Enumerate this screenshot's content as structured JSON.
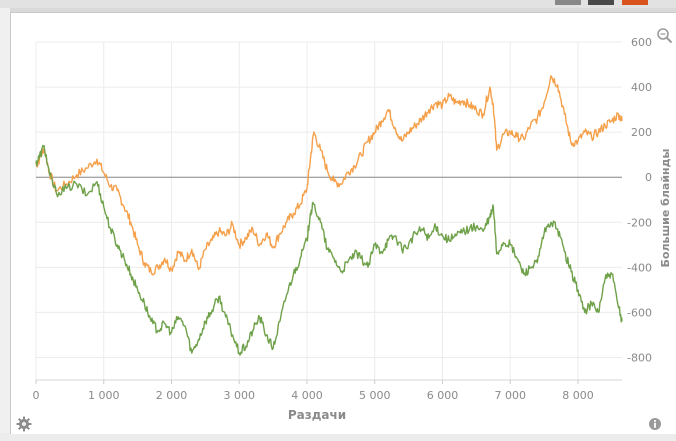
{
  "toolbar_colors": [
    "#888888",
    "#4a4a4a",
    "#4a4a4a",
    "#d9531e"
  ],
  "icons": {
    "zoom": "magnifier-icon",
    "settings": "gear-icon",
    "info": "info-icon"
  },
  "chart_data": {
    "type": "line",
    "xlabel": "Раздачи",
    "ylabel": "Большие блайнды",
    "xlim": [
      0,
      8650
    ],
    "ylim": [
      -900,
      600
    ],
    "x_ticks": [
      0,
      1000,
      2000,
      3000,
      4000,
      5000,
      6000,
      7000,
      8000
    ],
    "x_tick_labels": [
      "0",
      "1 000",
      "2 000",
      "3 000",
      "4 000",
      "5 000",
      "6 000",
      "7 000",
      "8 000"
    ],
    "y_ticks": [
      600,
      400,
      200,
      0,
      -200,
      -400,
      -600,
      -800
    ],
    "y_tick_labels": [
      "600",
      "400",
      "200",
      "0",
      "-200",
      "-400",
      "-600",
      "-800"
    ],
    "grid": true,
    "zero_line": true,
    "series": [
      {
        "color": "#f5a04a",
        "x": [
          0,
          50,
          120,
          200,
          300,
          450,
          600,
          750,
          900,
          1000,
          1100,
          1200,
          1300,
          1400,
          1500,
          1600,
          1700,
          1800,
          1900,
          2000,
          2100,
          2200,
          2300,
          2400,
          2500,
          2600,
          2700,
          2800,
          2900,
          3000,
          3100,
          3200,
          3300,
          3400,
          3500,
          3600,
          3700,
          3800,
          3900,
          4000,
          4050,
          4100,
          4200,
          4300,
          4400,
          4500,
          4600,
          4700,
          4800,
          4900,
          5000,
          5100,
          5200,
          5300,
          5400,
          5500,
          5600,
          5700,
          5800,
          5900,
          6000,
          6100,
          6200,
          6300,
          6400,
          6500,
          6600,
          6700,
          6750,
          6800,
          6900,
          7000,
          7100,
          7200,
          7300,
          7400,
          7500,
          7600,
          7700,
          7800,
          7900,
          8000,
          8100,
          8200,
          8300,
          8400,
          8500,
          8600,
          8650
        ],
        "values": [
          50,
          80,
          130,
          20,
          -60,
          -30,
          10,
          40,
          80,
          20,
          -40,
          -60,
          -130,
          -200,
          -300,
          -380,
          -420,
          -400,
          -360,
          -410,
          -330,
          -370,
          -320,
          -410,
          -320,
          -280,
          -240,
          -260,
          -210,
          -300,
          -270,
          -230,
          -300,
          -250,
          -310,
          -250,
          -200,
          -160,
          -120,
          -50,
          80,
          200,
          120,
          30,
          -20,
          -30,
          20,
          50,
          100,
          160,
          200,
          250,
          300,
          220,
          160,
          200,
          230,
          260,
          300,
          330,
          320,
          360,
          330,
          340,
          320,
          300,
          280,
          400,
          320,
          120,
          190,
          200,
          180,
          170,
          230,
          260,
          330,
          450,
          410,
          280,
          150,
          160,
          200,
          180,
          200,
          230,
          250,
          280,
          250
        ]
      },
      {
        "color": "#6fa14a",
        "x": [
          0,
          50,
          120,
          200,
          300,
          450,
          600,
          750,
          900,
          1000,
          1100,
          1200,
          1300,
          1400,
          1500,
          1600,
          1700,
          1800,
          1900,
          2000,
          2100,
          2200,
          2300,
          2400,
          2500,
          2600,
          2700,
          2800,
          2900,
          3000,
          3100,
          3200,
          3300,
          3400,
          3500,
          3600,
          3700,
          3800,
          3900,
          4000,
          4050,
          4100,
          4200,
          4300,
          4400,
          4500,
          4600,
          4700,
          4800,
          4900,
          5000,
          5100,
          5200,
          5300,
          5400,
          5500,
          5600,
          5700,
          5800,
          5900,
          6000,
          6100,
          6200,
          6300,
          6400,
          6500,
          6600,
          6700,
          6750,
          6800,
          6900,
          7000,
          7100,
          7200,
          7300,
          7400,
          7500,
          7600,
          7700,
          7800,
          7900,
          8000,
          8100,
          8200,
          8300,
          8400,
          8500,
          8600,
          8650
        ],
        "values": [
          60,
          90,
          140,
          10,
          -70,
          -50,
          -30,
          -80,
          -20,
          -130,
          -230,
          -300,
          -360,
          -430,
          -500,
          -560,
          -640,
          -680,
          -650,
          -690,
          -620,
          -660,
          -780,
          -720,
          -640,
          -590,
          -530,
          -620,
          -700,
          -780,
          -750,
          -680,
          -620,
          -700,
          -760,
          -640,
          -520,
          -430,
          -360,
          -280,
          -160,
          -120,
          -200,
          -320,
          -360,
          -420,
          -380,
          -340,
          -360,
          -400,
          -300,
          -330,
          -280,
          -260,
          -320,
          -300,
          -250,
          -230,
          -270,
          -220,
          -260,
          -280,
          -260,
          -240,
          -230,
          -220,
          -240,
          -180,
          -130,
          -340,
          -290,
          -300,
          -360,
          -430,
          -400,
          -380,
          -250,
          -200,
          -230,
          -330,
          -420,
          -500,
          -600,
          -560,
          -600,
          -450,
          -430,
          -580,
          -640
        ]
      }
    ]
  }
}
